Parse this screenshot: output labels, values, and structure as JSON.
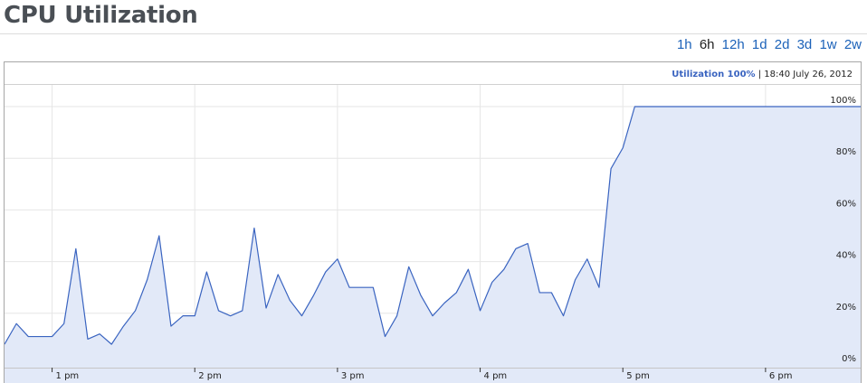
{
  "page": {
    "title": "CPU Utilization"
  },
  "range_selector": {
    "options": [
      "1h",
      "6h",
      "12h",
      "1d",
      "2d",
      "3d",
      "1w",
      "2w"
    ],
    "selected": "6h"
  },
  "colors": {
    "line": "#3a64c0",
    "fill": "#e2e9f8",
    "grid": "#e6e6e6",
    "legend_label": "#3a64c0",
    "axis_text": "#222222"
  },
  "chart_data": {
    "type": "area",
    "legend": {
      "label": "Utilization",
      "value": "100%",
      "separator": "|",
      "timestamp": "18:40 July 26, 2012"
    },
    "x_ticks": [
      "1 pm",
      "2 pm",
      "3 pm",
      "4 pm",
      "5 pm",
      "6 pm"
    ],
    "y_ticks": [
      "0%",
      "20%",
      "40%",
      "60%",
      "80%",
      "100%"
    ],
    "ylim": [
      0,
      100
    ],
    "xlim": [
      "12:40",
      "18:40"
    ],
    "grid": true,
    "series": [
      {
        "x": [
          "12:40",
          "12:45",
          "12:50",
          "12:55",
          "13:00",
          "13:05",
          "13:10",
          "13:15",
          "13:20",
          "13:25",
          "13:30",
          "13:35",
          "13:40",
          "13:45",
          "13:50",
          "13:55",
          "14:00",
          "14:05",
          "14:10",
          "14:15",
          "14:20",
          "14:25",
          "14:30",
          "14:35",
          "14:40",
          "14:45",
          "14:50",
          "14:55",
          "15:00",
          "15:05",
          "15:10",
          "15:15",
          "15:20",
          "15:25",
          "15:30",
          "15:35",
          "15:40",
          "15:45",
          "15:50",
          "15:55",
          "16:00",
          "16:05",
          "16:10",
          "16:15",
          "16:20",
          "16:25",
          "16:30",
          "16:35",
          "16:40",
          "16:45",
          "16:50",
          "16:55",
          "17:00",
          "17:05",
          "17:10",
          "17:15",
          "17:20",
          "17:25",
          "17:30",
          "17:35",
          "17:40",
          "17:45",
          "17:50",
          "17:55",
          "18:00",
          "18:05",
          "18:10",
          "18:15",
          "18:20",
          "18:25",
          "18:30",
          "18:35",
          "18:40"
        ],
        "values": [
          8,
          16,
          11,
          11,
          11,
          16,
          45,
          10,
          12,
          8,
          15,
          21,
          33,
          50,
          15,
          19,
          19,
          36,
          21,
          19,
          21,
          53,
          22,
          35,
          25,
          19,
          27,
          36,
          41,
          30,
          30,
          30,
          11,
          19,
          38,
          27,
          19,
          24,
          28,
          37,
          21,
          32,
          37,
          45,
          47,
          28,
          28,
          19,
          33,
          41,
          30,
          76,
          84,
          100,
          100,
          100,
          100,
          100,
          100,
          100,
          100,
          100,
          100,
          100,
          100,
          100,
          100,
          100,
          100,
          100,
          100,
          100,
          100
        ]
      }
    ]
  }
}
